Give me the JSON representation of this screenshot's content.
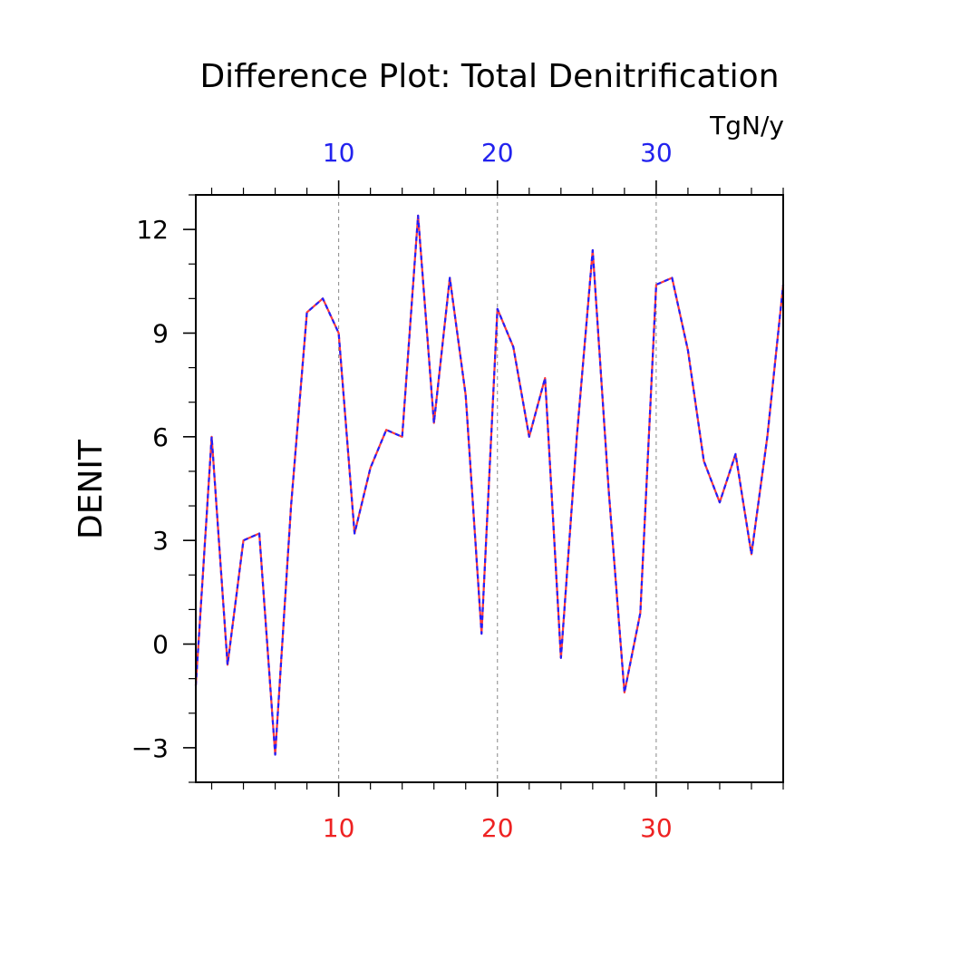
{
  "chart_data": {
    "type": "line",
    "title": "Difference Plot: Total Denitrification",
    "units": "TgN/y",
    "ylabel": "DENIT",
    "xlabel": "",
    "xlim": [
      1,
      38
    ],
    "ylim": [
      -4,
      13
    ],
    "x_ticks": [
      10,
      20,
      30
    ],
    "y_ticks": [
      -3,
      0,
      3,
      6,
      9,
      12
    ],
    "top_axis_color": "#2222ee",
    "bottom_axis_color": "#ee2222",
    "grid": "vertical dashed at major x ticks",
    "x": [
      1,
      2,
      3,
      4,
      5,
      6,
      7,
      8,
      9,
      10,
      11,
      12,
      13,
      14,
      15,
      16,
      17,
      18,
      19,
      20,
      21,
      22,
      23,
      24,
      25,
      26,
      27,
      28,
      29,
      30,
      31,
      32,
      33,
      34,
      35,
      36,
      37,
      38
    ],
    "series": [
      {
        "color": "#ff3b3b",
        "values": [
          -1.2,
          6.0,
          -0.6,
          3.0,
          3.2,
          -3.2,
          4.0,
          9.6,
          10.0,
          9.0,
          3.2,
          5.1,
          6.2,
          6.0,
          12.4,
          6.4,
          10.6,
          7.2,
          0.3,
          9.7,
          8.6,
          6.0,
          7.7,
          -0.4,
          6.0,
          11.4,
          4.5,
          -1.4,
          0.9,
          10.4,
          10.6,
          8.5,
          5.3,
          4.1,
          5.5,
          2.6,
          6.0,
          10.4
        ]
      },
      {
        "color": "#2020ff",
        "values": [
          -1.2,
          6.0,
          -0.6,
          3.0,
          3.2,
          -3.2,
          4.0,
          9.6,
          10.0,
          9.0,
          3.2,
          5.1,
          6.2,
          6.0,
          12.4,
          6.4,
          10.6,
          7.2,
          0.3,
          9.7,
          8.6,
          6.0,
          7.7,
          -0.4,
          6.0,
          11.4,
          4.5,
          -1.4,
          0.9,
          10.4,
          10.6,
          8.5,
          5.3,
          4.1,
          5.5,
          2.6,
          6.0,
          10.4
        ]
      }
    ]
  }
}
